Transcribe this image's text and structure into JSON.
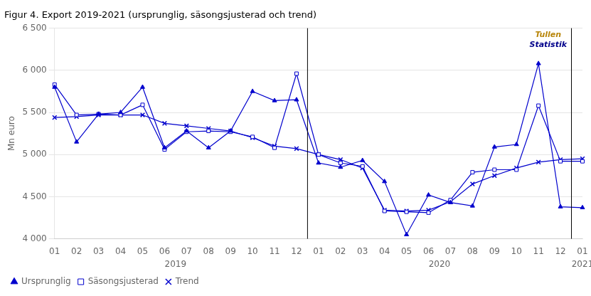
{
  "chart_data": {
    "type": "line",
    "title": "Figur 4. Export 2019-2021 (ursprunglig, säsongsjusterad och trend)",
    "ylabel": "Mn euro",
    "categories": [
      "01",
      "02",
      "03",
      "04",
      "05",
      "06",
      "07",
      "08",
      "09",
      "10",
      "11",
      "12",
      "01",
      "02",
      "03",
      "04",
      "05",
      "06",
      "07",
      "08",
      "09",
      "10",
      "11",
      "12",
      "01"
    ],
    "series": [
      {
        "name": "Ursprunglig",
        "color": "#0000CD",
        "marker": "triangle",
        "values": [
          5800,
          5150,
          5480,
          5500,
          5800,
          5080,
          5280,
          5080,
          5280,
          5750,
          5640,
          5650,
          4900,
          4850,
          4930,
          4680,
          4050,
          4520,
          4430,
          4390,
          5090,
          5120,
          6080,
          4380,
          4370
        ]
      },
      {
        "name": "Säsongsjusterad",
        "color": "#0000CD",
        "marker": "open square",
        "values": [
          5830,
          5470,
          5480,
          5470,
          5590,
          5060,
          5270,
          5280,
          5270,
          5210,
          5080,
          5960,
          5000,
          4900,
          4860,
          4330,
          4320,
          4310,
          4460,
          4790,
          4820,
          4820,
          5580,
          4920,
          4920
        ]
      },
      {
        "name": "Trend",
        "color": "#0000CD",
        "marker": "x",
        "values": [
          5440,
          5450,
          5470,
          5470,
          5470,
          5370,
          5340,
          5310,
          5280,
          5200,
          5100,
          5070,
          5000,
          4940,
          4840,
          4340,
          4330,
          4340,
          4440,
          4650,
          4750,
          4840,
          4910,
          4940,
          4950
        ]
      }
    ],
    "ylim": [
      4000,
      6500
    ],
    "yticks": [
      {
        "value": 4000,
        "label": "4 000"
      },
      {
        "value": 4500,
        "label": "4 500"
      },
      {
        "value": 5000,
        "label": "5 000"
      },
      {
        "value": 5500,
        "label": "5 500"
      },
      {
        "value": 6000,
        "label": "6 000"
      },
      {
        "value": 6500,
        "label": "6 500"
      }
    ],
    "grid": true,
    "legend": "lower left",
    "x_groups": [
      {
        "label": "2019",
        "start": 0,
        "end": 11
      },
      {
        "label": "2020",
        "start": 12,
        "end": 23
      },
      {
        "label": "2021",
        "start": 24,
        "end": 24
      }
    ],
    "annotations": [
      {
        "text": "Tullen",
        "color": "#B8860B"
      },
      {
        "text": "Statistik",
        "color": "#00008B"
      }
    ]
  }
}
